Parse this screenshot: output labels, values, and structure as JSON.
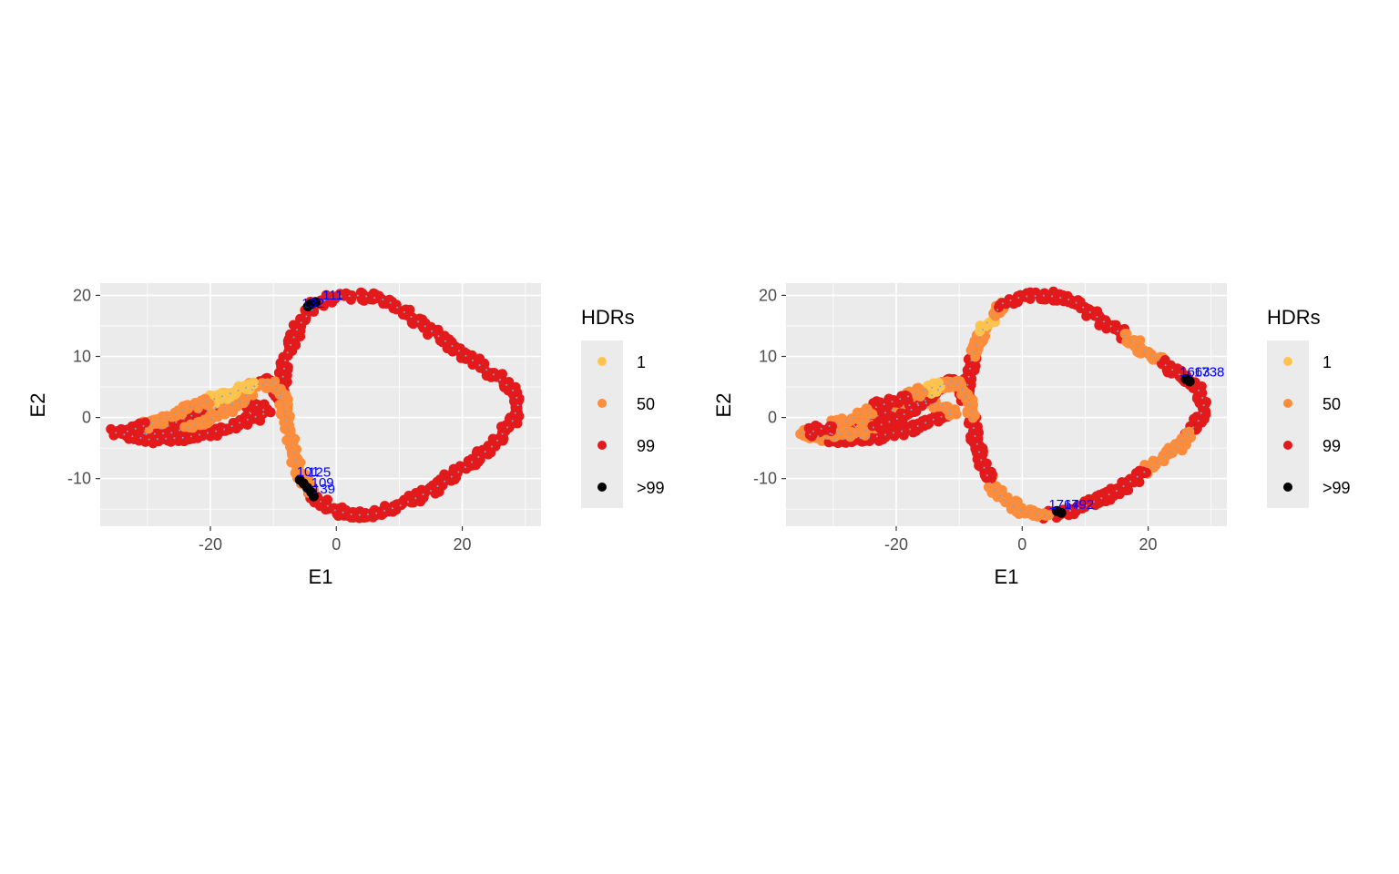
{
  "colors": {
    "panel_bg": "#ebebeb",
    "grid": "#ffffff",
    "hdr_1": "#fec44f",
    "hdr_50": "#fd8d3c",
    "hdr_99": "#e31a1c",
    "hdr_gt99": "#000000",
    "annotation": "#0000ff",
    "path_dots": "#7fa6c9"
  },
  "chart_data": [
    {
      "type": "scatter",
      "xlabel": "E1",
      "ylabel": "E2",
      "xlim": [
        -37.5,
        32.5
      ],
      "ylim": [
        -17.8,
        22
      ],
      "x_ticks": [
        -20,
        0,
        20
      ],
      "y_ticks": [
        20,
        10,
        0,
        -10
      ],
      "x_tick_labels": [
        "-20",
        "0",
        "20"
      ],
      "y_tick_labels": [
        "20",
        "10",
        "0",
        "-10"
      ],
      "grid": true,
      "legend": {
        "title": "HDRs",
        "position": "right",
        "entries": [
          {
            "label": "1",
            "color": "#fec44f"
          },
          {
            "label": "50",
            "color": "#fd8d3c"
          },
          {
            "label": "99",
            "color": "#e31a1c"
          },
          {
            "label": ">99",
            "color": "#000000"
          }
        ]
      },
      "orange_segments": [
        [
          120,
          150
        ],
        [
          380,
          470
        ]
      ],
      "yellow_segments": [
        [
          430,
          445
        ]
      ],
      "outliers": [
        {
          "x": -4.5,
          "y": 18.2
        },
        {
          "x": -4.0,
          "y": 18.6
        },
        {
          "x": -3.3,
          "y": 18.9
        },
        {
          "x": -5.8,
          "y": -10.2
        },
        {
          "x": -5.2,
          "y": -10.8
        },
        {
          "x": -4.6,
          "y": -11.5
        },
        {
          "x": -4.0,
          "y": -12.2
        },
        {
          "x": -3.6,
          "y": -12.9
        }
      ],
      "annotations": [
        {
          "text": "111",
          "x": -2.2,
          "y": 19.3
        },
        {
          "text": "132",
          "x": -5.5,
          "y": 18.0
        },
        {
          "text": "101",
          "x": -6.3,
          "y": -9.6
        },
        {
          "text": "125",
          "x": -4.5,
          "y": -9.7
        },
        {
          "text": "109",
          "x": -4.0,
          "y": -11.4
        },
        {
          "text": "139",
          "x": -3.8,
          "y": -12.4
        }
      ]
    },
    {
      "type": "scatter",
      "xlabel": "E1",
      "ylabel": "E2",
      "xlim": [
        -37.5,
        32.5
      ],
      "ylim": [
        -17.8,
        22
      ],
      "x_ticks": [
        -20,
        0,
        20
      ],
      "y_ticks": [
        20,
        10,
        0,
        -10
      ],
      "x_tick_labels": [
        "-20",
        "0",
        "20"
      ],
      "y_tick_labels": [
        "20",
        "10",
        "0",
        "-10"
      ],
      "grid": true,
      "legend": {
        "title": "HDRs",
        "position": "right",
        "entries": [
          {
            "label": "1",
            "color": "#fec44f"
          },
          {
            "label": "50",
            "color": "#fd8d3c"
          },
          {
            "label": "99",
            "color": "#e31a1c"
          },
          {
            "label": ">99",
            "color": "#000000"
          }
        ]
      },
      "orange_segments": [
        [
          0,
          8
        ],
        [
          55,
          80
        ],
        [
          100,
          120
        ],
        [
          180,
          200
        ],
        [
          250,
          265
        ],
        [
          300,
          320
        ],
        [
          360,
          385
        ],
        [
          410,
          440
        ],
        [
          455,
          470
        ]
      ],
      "yellow_segments": [
        [
          190,
          196
        ],
        [
          430,
          434
        ]
      ],
      "outliers": [
        {
          "x": 26.0,
          "y": 6.3
        },
        {
          "x": 26.6,
          "y": 5.9
        },
        {
          "x": 5.5,
          "y": -15.3
        },
        {
          "x": 6.2,
          "y": -15.6
        }
      ],
      "annotations": [
        {
          "text": "1663",
          "x": 25.0,
          "y": 6.7
        },
        {
          "text": "1738",
          "x": 27.3,
          "y": 6.7
        },
        {
          "text": "1764",
          "x": 4.2,
          "y": -15.0
        },
        {
          "text": "1792",
          "x": 6.6,
          "y": -15.0
        }
      ]
    }
  ]
}
